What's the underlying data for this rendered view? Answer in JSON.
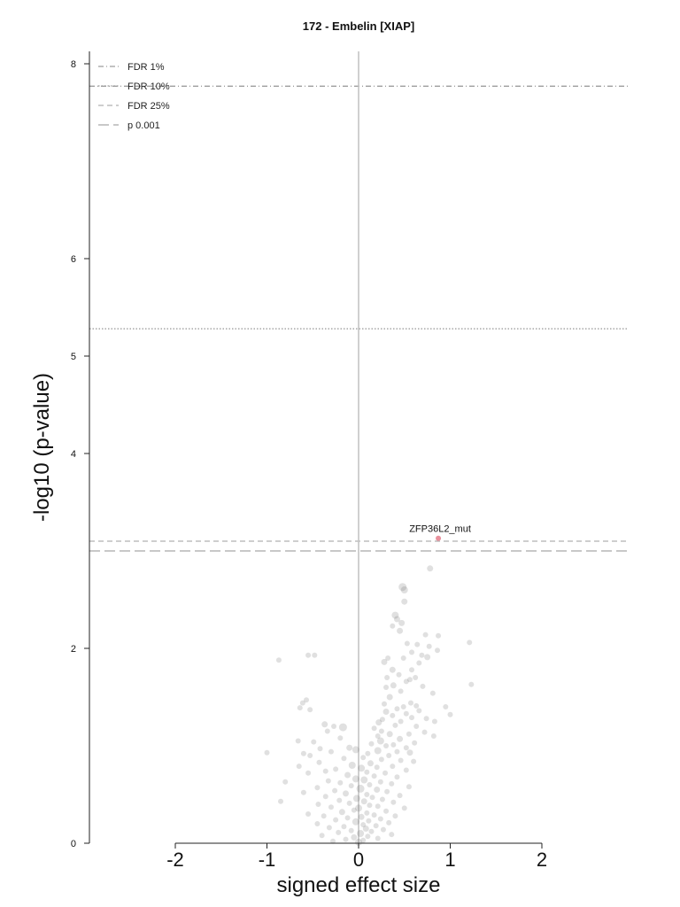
{
  "chart_data": {
    "type": "scatter",
    "title": "172 - Embelin [XIAP]",
    "xlabel": "signed effect size",
    "ylabel": "-log10 (p-value)",
    "xlim": [
      -2.9,
      2.9
    ],
    "ylim": [
      0,
      8.2
    ],
    "x_ticks": [
      -2,
      -1,
      0,
      1,
      2
    ],
    "x_tick_labels": [
      "-2",
      "-1",
      "0",
      "1",
      "2"
    ],
    "y_ticks": [
      0,
      2,
      4,
      5,
      6,
      8
    ],
    "y_tick_labels": [
      "0",
      "2",
      "4",
      "5",
      "6",
      "8"
    ],
    "grid": false,
    "legend_position": "top-left",
    "thresholds": [
      {
        "name": "FDR 1%",
        "y": 7.77,
        "style": "dashdot",
        "color": "#9e9e9e"
      },
      {
        "name": "FDR 10%",
        "y": 5.28,
        "style": "dotted",
        "color": "#9e9e9e"
      },
      {
        "name": "FDR 25%",
        "y": 3.1,
        "style": "dashed",
        "color": "#b0b0b0"
      },
      {
        "name": "p 0.001",
        "y": 3.0,
        "style": "longdash",
        "color": "#a8a8a8"
      }
    ],
    "highlight": {
      "label": "ZFP36L2_mut",
      "x": 0.87,
      "y": 3.13,
      "color": "#e8909c"
    },
    "points": [
      {
        "x": 0.78,
        "y": 2.82,
        "s": 3.5
      },
      {
        "x": 0.48,
        "y": 2.63,
        "s": 4.5
      },
      {
        "x": 0.5,
        "y": 2.6,
        "s": 4
      },
      {
        "x": 0.5,
        "y": 2.48,
        "s": 3.5
      },
      {
        "x": 0.4,
        "y": 2.34,
        "s": 4
      },
      {
        "x": 0.42,
        "y": 2.3,
        "s": 3.5
      },
      {
        "x": 0.47,
        "y": 2.26,
        "s": 3.5
      },
      {
        "x": 0.37,
        "y": 2.23,
        "s": 3
      },
      {
        "x": 0.45,
        "y": 2.18,
        "s": 3.5
      },
      {
        "x": 0.73,
        "y": 2.14,
        "s": 3
      },
      {
        "x": 0.87,
        "y": 2.13,
        "s": 3
      },
      {
        "x": 1.21,
        "y": 2.06,
        "s": 3
      },
      {
        "x": 0.53,
        "y": 2.05,
        "s": 3
      },
      {
        "x": 0.64,
        "y": 2.04,
        "s": 3
      },
      {
        "x": 0.77,
        "y": 2.02,
        "s": 3
      },
      {
        "x": 0.86,
        "y": 1.98,
        "s": 3
      },
      {
        "x": 0.58,
        "y": 1.96,
        "s": 3
      },
      {
        "x": 0.69,
        "y": 1.93,
        "s": 3
      },
      {
        "x": 0.75,
        "y": 1.91,
        "s": 3.5
      },
      {
        "x": 0.49,
        "y": 1.9,
        "s": 3
      },
      {
        "x": 0.32,
        "y": 1.9,
        "s": 3
      },
      {
        "x": 0.28,
        "y": 1.86,
        "s": 3.5
      },
      {
        "x": 0.66,
        "y": 1.85,
        "s": 3
      },
      {
        "x": -0.87,
        "y": 1.88,
        "s": 3
      },
      {
        "x": -0.55,
        "y": 1.93,
        "s": 3
      },
      {
        "x": -0.48,
        "y": 1.93,
        "s": 3
      },
      {
        "x": 0.58,
        "y": 1.78,
        "s": 3
      },
      {
        "x": 0.37,
        "y": 1.78,
        "s": 3.5
      },
      {
        "x": 0.44,
        "y": 1.73,
        "s": 3
      },
      {
        "x": 0.62,
        "y": 1.7,
        "s": 3
      },
      {
        "x": 0.31,
        "y": 1.7,
        "s": 3
      },
      {
        "x": 0.56,
        "y": 1.68,
        "s": 3
      },
      {
        "x": 0.52,
        "y": 1.66,
        "s": 3
      },
      {
        "x": 0.38,
        "y": 1.62,
        "s": 3.5
      },
      {
        "x": 0.7,
        "y": 1.61,
        "s": 3
      },
      {
        "x": 1.23,
        "y": 1.63,
        "s": 3
      },
      {
        "x": 0.3,
        "y": 1.6,
        "s": 3
      },
      {
        "x": 0.46,
        "y": 1.56,
        "s": 3
      },
      {
        "x": 0.81,
        "y": 1.54,
        "s": 3
      },
      {
        "x": 0.34,
        "y": 1.5,
        "s": 3.5
      },
      {
        "x": -0.57,
        "y": 1.47,
        "s": 3
      },
      {
        "x": -0.61,
        "y": 1.44,
        "s": 3
      },
      {
        "x": 0.57,
        "y": 1.44,
        "s": 3
      },
      {
        "x": 0.28,
        "y": 1.43,
        "s": 3
      },
      {
        "x": 0.49,
        "y": 1.4,
        "s": 3
      },
      {
        "x": 0.63,
        "y": 1.41,
        "s": 3
      },
      {
        "x": -0.64,
        "y": 1.39,
        "s": 3
      },
      {
        "x": 0.95,
        "y": 1.4,
        "s": 3
      },
      {
        "x": -0.53,
        "y": 1.37,
        "s": 3
      },
      {
        "x": 0.42,
        "y": 1.38,
        "s": 3
      },
      {
        "x": 0.66,
        "y": 1.36,
        "s": 3
      },
      {
        "x": 0.3,
        "y": 1.35,
        "s": 3.5
      },
      {
        "x": 0.52,
        "y": 1.33,
        "s": 3
      },
      {
        "x": 0.37,
        "y": 1.31,
        "s": 3
      },
      {
        "x": 0.58,
        "y": 1.29,
        "s": 3
      },
      {
        "x": 0.74,
        "y": 1.28,
        "s": 3
      },
      {
        "x": 1.0,
        "y": 1.32,
        "s": 3
      },
      {
        "x": 0.26,
        "y": 1.27,
        "s": 3
      },
      {
        "x": 0.46,
        "y": 1.25,
        "s": 3
      },
      {
        "x": 0.83,
        "y": 1.25,
        "s": 3
      },
      {
        "x": 0.22,
        "y": 1.24,
        "s": 3.5
      },
      {
        "x": -0.37,
        "y": 1.22,
        "s": 3.5
      },
      {
        "x": -0.27,
        "y": 1.2,
        "s": 3
      },
      {
        "x": 0.4,
        "y": 1.21,
        "s": 3
      },
      {
        "x": 0.63,
        "y": 1.2,
        "s": 3
      },
      {
        "x": -0.17,
        "y": 1.19,
        "s": 4.5
      },
      {
        "x": 0.17,
        "y": 1.18,
        "s": 3
      },
      {
        "x": -0.34,
        "y": 1.15,
        "s": 3
      },
      {
        "x": 0.25,
        "y": 1.15,
        "s": 3
      },
      {
        "x": 0.72,
        "y": 1.14,
        "s": 3
      },
      {
        "x": 0.34,
        "y": 1.12,
        "s": 3.5
      },
      {
        "x": 0.55,
        "y": 1.12,
        "s": 3
      },
      {
        "x": 0.21,
        "y": 1.1,
        "s": 3
      },
      {
        "x": -0.2,
        "y": 1.08,
        "s": 3
      },
      {
        "x": 0.45,
        "y": 1.07,
        "s": 3.5
      },
      {
        "x": 0.82,
        "y": 1.1,
        "s": 3
      },
      {
        "x": 0.24,
        "y": 1.05,
        "s": 4
      },
      {
        "x": -0.66,
        "y": 1.05,
        "s": 3
      },
      {
        "x": -0.49,
        "y": 1.04,
        "s": 3
      },
      {
        "x": 0.61,
        "y": 1.03,
        "s": 3
      },
      {
        "x": 0.14,
        "y": 1.02,
        "s": 3
      },
      {
        "x": 0.38,
        "y": 1.01,
        "s": 3
      },
      {
        "x": 0.3,
        "y": 1.0,
        "s": 3
      },
      {
        "x": -0.1,
        "y": 0.98,
        "s": 3.5
      },
      {
        "x": 0.52,
        "y": 0.98,
        "s": 3
      },
      {
        "x": -0.42,
        "y": 0.97,
        "s": 3
      },
      {
        "x": -0.03,
        "y": 0.96,
        "s": 4
      },
      {
        "x": 0.21,
        "y": 0.95,
        "s": 4
      },
      {
        "x": 0.42,
        "y": 0.94,
        "s": 3
      },
      {
        "x": -0.3,
        "y": 0.94,
        "s": 3
      },
      {
        "x": 0.56,
        "y": 0.93,
        "s": 3.5
      },
      {
        "x": 0.1,
        "y": 0.92,
        "s": 3
      },
      {
        "x": -1.0,
        "y": 0.93,
        "s": 3
      },
      {
        "x": -0.6,
        "y": 0.92,
        "s": 3
      },
      {
        "x": -0.53,
        "y": 0.9,
        "s": 3
      },
      {
        "x": 0.33,
        "y": 0.9,
        "s": 3
      },
      {
        "x": 0.05,
        "y": 0.88,
        "s": 3
      },
      {
        "x": -0.16,
        "y": 0.87,
        "s": 3
      },
      {
        "x": 0.25,
        "y": 0.86,
        "s": 3
      },
      {
        "x": 0.46,
        "y": 0.85,
        "s": 3
      },
      {
        "x": 0.6,
        "y": 0.84,
        "s": 3
      },
      {
        "x": -0.43,
        "y": 0.83,
        "s": 3
      },
      {
        "x": 0.13,
        "y": 0.82,
        "s": 3.5
      },
      {
        "x": -0.07,
        "y": 0.8,
        "s": 4
      },
      {
        "x": 0.37,
        "y": 0.79,
        "s": 3
      },
      {
        "x": -0.65,
        "y": 0.79,
        "s": 3
      },
      {
        "x": 0.2,
        "y": 0.78,
        "s": 3
      },
      {
        "x": 0.03,
        "y": 0.77,
        "s": 4
      },
      {
        "x": -0.25,
        "y": 0.76,
        "s": 3
      },
      {
        "x": 0.52,
        "y": 0.75,
        "s": 3
      },
      {
        "x": -0.36,
        "y": 0.74,
        "s": 3
      },
      {
        "x": 0.09,
        "y": 0.73,
        "s": 3
      },
      {
        "x": 0.29,
        "y": 0.72,
        "s": 3
      },
      {
        "x": -0.55,
        "y": 0.72,
        "s": 3
      },
      {
        "x": -0.12,
        "y": 0.7,
        "s": 3.5
      },
      {
        "x": 0.17,
        "y": 0.69,
        "s": 3
      },
      {
        "x": 0.42,
        "y": 0.68,
        "s": 3
      },
      {
        "x": -0.03,
        "y": 0.66,
        "s": 4
      },
      {
        "x": 0.06,
        "y": 0.65,
        "s": 4
      },
      {
        "x": -0.33,
        "y": 0.64,
        "s": 3
      },
      {
        "x": 0.24,
        "y": 0.63,
        "s": 3
      },
      {
        "x": -0.8,
        "y": 0.63,
        "s": 3
      },
      {
        "x": -0.2,
        "y": 0.62,
        "s": 3
      },
      {
        "x": 0.36,
        "y": 0.61,
        "s": 3
      },
      {
        "x": 0.12,
        "y": 0.6,
        "s": 3
      },
      {
        "x": -0.08,
        "y": 0.59,
        "s": 3
      },
      {
        "x": 0.55,
        "y": 0.58,
        "s": 3
      },
      {
        "x": -0.45,
        "y": 0.57,
        "s": 3
      },
      {
        "x": 0.02,
        "y": 0.56,
        "s": 4.5
      },
      {
        "x": 0.2,
        "y": 0.55,
        "s": 3.5
      },
      {
        "x": -0.26,
        "y": 0.54,
        "s": 3
      },
      {
        "x": 0.31,
        "y": 0.53,
        "s": 3
      },
      {
        "x": -0.6,
        "y": 0.52,
        "s": 3
      },
      {
        "x": -0.14,
        "y": 0.51,
        "s": 3.5
      },
      {
        "x": 0.09,
        "y": 0.5,
        "s": 3
      },
      {
        "x": 0.45,
        "y": 0.49,
        "s": 3
      },
      {
        "x": -0.36,
        "y": 0.48,
        "s": 3
      },
      {
        "x": 0.15,
        "y": 0.47,
        "s": 3
      },
      {
        "x": -0.02,
        "y": 0.46,
        "s": 4
      },
      {
        "x": 0.26,
        "y": 0.45,
        "s": 3
      },
      {
        "x": -0.21,
        "y": 0.44,
        "s": 3
      },
      {
        "x": 0.06,
        "y": 0.43,
        "s": 3.5
      },
      {
        "x": -0.85,
        "y": 0.43,
        "s": 3
      },
      {
        "x": 0.38,
        "y": 0.42,
        "s": 3
      },
      {
        "x": -0.1,
        "y": 0.41,
        "s": 3
      },
      {
        "x": -0.44,
        "y": 0.4,
        "s": 3
      },
      {
        "x": 0.12,
        "y": 0.39,
        "s": 3
      },
      {
        "x": 0.21,
        "y": 0.38,
        "s": 3
      },
      {
        "x": -0.3,
        "y": 0.37,
        "s": 3
      },
      {
        "x": 0.0,
        "y": 0.36,
        "s": 4
      },
      {
        "x": 0.5,
        "y": 0.36,
        "s": 3
      },
      {
        "x": -0.05,
        "y": 0.34,
        "s": 3
      },
      {
        "x": 0.3,
        "y": 0.33,
        "s": 3
      },
      {
        "x": -0.18,
        "y": 0.32,
        "s": 3.5
      },
      {
        "x": 0.09,
        "y": 0.31,
        "s": 3
      },
      {
        "x": -0.55,
        "y": 0.3,
        "s": 3
      },
      {
        "x": 0.17,
        "y": 0.29,
        "s": 3
      },
      {
        "x": -0.38,
        "y": 0.28,
        "s": 3
      },
      {
        "x": 0.4,
        "y": 0.28,
        "s": 3
      },
      {
        "x": 0.03,
        "y": 0.27,
        "s": 3.5
      },
      {
        "x": -0.12,
        "y": 0.26,
        "s": 3
      },
      {
        "x": 0.24,
        "y": 0.25,
        "s": 3
      },
      {
        "x": -0.25,
        "y": 0.24,
        "s": 3
      },
      {
        "x": 0.11,
        "y": 0.23,
        "s": 3
      },
      {
        "x": -0.03,
        "y": 0.22,
        "s": 4
      },
      {
        "x": 0.33,
        "y": 0.21,
        "s": 3
      },
      {
        "x": -0.45,
        "y": 0.2,
        "s": 3
      },
      {
        "x": 0.05,
        "y": 0.19,
        "s": 3
      },
      {
        "x": 0.19,
        "y": 0.18,
        "s": 3
      },
      {
        "x": -0.16,
        "y": 0.17,
        "s": 3
      },
      {
        "x": -0.32,
        "y": 0.16,
        "s": 3
      },
      {
        "x": 0.08,
        "y": 0.15,
        "s": 3.5
      },
      {
        "x": 0.27,
        "y": 0.14,
        "s": 3
      },
      {
        "x": -0.08,
        "y": 0.13,
        "s": 3
      },
      {
        "x": 0.14,
        "y": 0.12,
        "s": 3
      },
      {
        "x": -0.22,
        "y": 0.11,
        "s": 3
      },
      {
        "x": 0.02,
        "y": 0.1,
        "s": 4
      },
      {
        "x": 0.36,
        "y": 0.09,
        "s": 3
      },
      {
        "x": -0.4,
        "y": 0.08,
        "s": 3
      },
      {
        "x": 0.1,
        "y": 0.07,
        "s": 3
      },
      {
        "x": -0.05,
        "y": 0.06,
        "s": 3.5
      },
      {
        "x": 0.21,
        "y": 0.05,
        "s": 3
      },
      {
        "x": -0.14,
        "y": 0.04,
        "s": 3
      },
      {
        "x": 0.05,
        "y": 0.03,
        "s": 3
      },
      {
        "x": -0.28,
        "y": 0.02,
        "s": 3
      },
      {
        "x": 0.0,
        "y": 0.01,
        "s": 4
      }
    ]
  }
}
